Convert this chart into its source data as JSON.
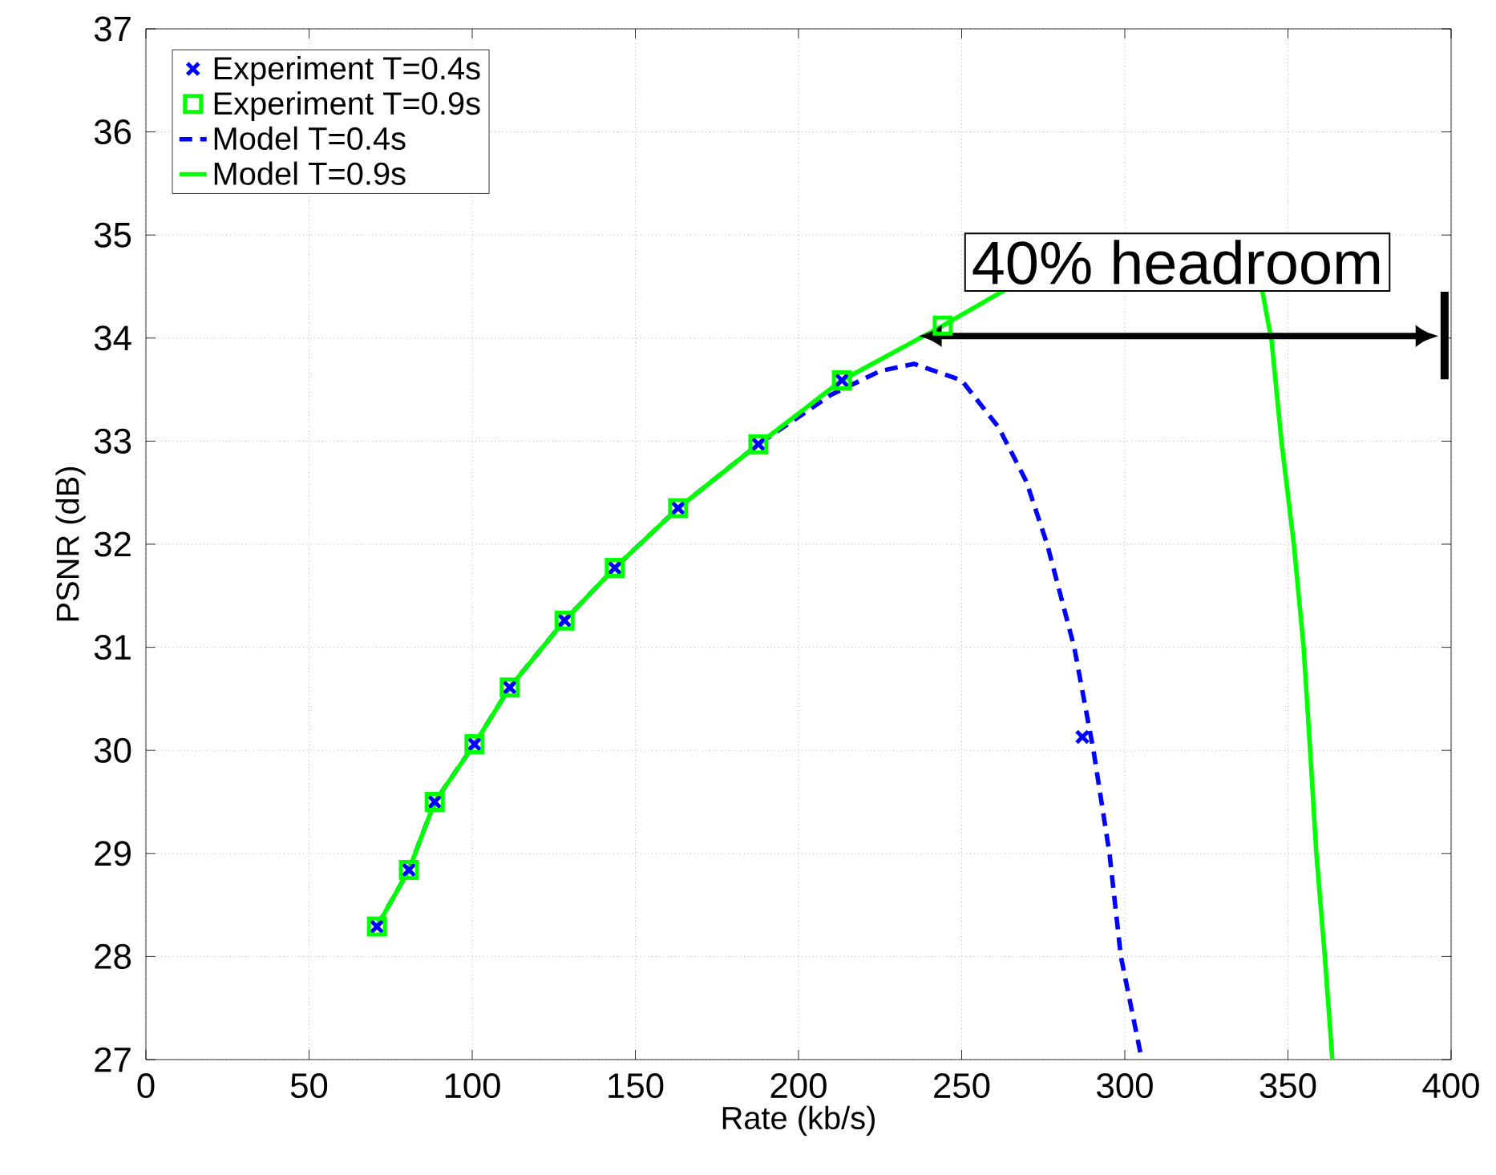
{
  "chart_data": {
    "type": "line",
    "xlabel": "Rate (kb/s)",
    "ylabel": "PSNR (dB)",
    "xlim": [
      0,
      400
    ],
    "xticks": [
      0,
      50,
      100,
      150,
      200,
      250,
      300,
      350,
      400
    ],
    "ylim": [
      27,
      37
    ],
    "yticks": [
      27,
      28,
      29,
      30,
      31,
      32,
      33,
      34,
      35,
      36,
      37
    ],
    "grid": true,
    "legend": "top left",
    "series": [
      {
        "name": "Experiment T=0.4s",
        "type": "scatter",
        "marker": "cross",
        "color": "#0000ff",
        "x": [
          70.8,
          80.6,
          88.5,
          100.7,
          111.5,
          128.3,
          143.7,
          163.1,
          187.7,
          213.3,
          287
        ],
        "values": [
          28.29,
          28.84,
          29.5,
          30.06,
          30.61,
          31.26,
          31.77,
          32.35,
          32.97,
          33.59,
          30.13
        ]
      },
      {
        "name": "Experiment T=0.9s",
        "type": "scatter",
        "marker": "square",
        "color": "#00ff00",
        "x": [
          70.8,
          80.6,
          88.5,
          100.7,
          111.5,
          128.3,
          143.7,
          163.1,
          187.7,
          213.3,
          244.2
        ],
        "values": [
          28.29,
          28.84,
          29.5,
          30.06,
          30.61,
          31.26,
          31.77,
          32.35,
          32.97,
          33.59,
          34.12
        ]
      },
      {
        "name": "Model T=0.4s",
        "marker": "none",
        "line_style": "dashed",
        "color": "#0000ff",
        "x": [
          70.8,
          80.6,
          88.5,
          100.7,
          111.5,
          128.3,
          143.7,
          163.1,
          187.7,
          210,
          225,
          235.4,
          250,
          261.4,
          269.8,
          276.2,
          284.5,
          290.4,
          295.3,
          298.8,
          305.2
        ],
        "values": [
          28.29,
          28.84,
          29.5,
          30.06,
          30.61,
          31.26,
          31.77,
          32.35,
          32.97,
          33.45,
          33.68,
          33.75,
          33.59,
          33.13,
          32.61,
          32,
          31,
          30,
          29,
          28,
          27
        ]
      },
      {
        "name": "Model T=0.9s",
        "marker": "none",
        "line_style": "solid",
        "color": "#00ff00",
        "x": [
          70.8,
          80.6,
          88.5,
          100.7,
          111.5,
          128.3,
          143.7,
          163.1,
          187.7,
          213.3,
          244.2,
          263.4,
          300,
          342,
          345,
          348,
          351.8,
          354.8,
          356.8,
          358.7,
          361.3,
          363.6
        ],
        "values": [
          28.29,
          28.84,
          29.5,
          30.06,
          30.61,
          31.26,
          31.77,
          32.35,
          32.97,
          33.59,
          34.12,
          34.47,
          null,
          34.48,
          33.97,
          33,
          32,
          31,
          30,
          29,
          28,
          27
        ]
      }
    ],
    "annotations": [
      "40% headroom"
    ]
  }
}
